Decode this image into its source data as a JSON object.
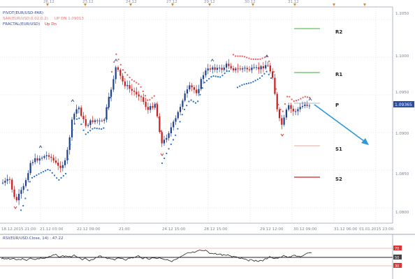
{
  "chart": {
    "top_dates": [
      "26.12",
      "23.12",
      "24.12",
      "27.12",
      "29.12",
      "30.12",
      "31.12"
    ],
    "legend": {
      "pivot": "PIVOT(EUR/USD-PAR)",
      "sar": "SAR(EUR/USD,0.02,0.2)",
      "sar_flags": "UP DN 1.09013",
      "fractal": "FRACTAL(EUR/USD)",
      "fractal_flags": "Up Dn"
    },
    "price_axis": [
      "1.1050",
      "1.1000",
      "1.0950",
      "1.0900",
      "1.0850",
      "1.0800"
    ],
    "price_tag": "1.09365",
    "pivot_labels": {
      "r2": "R2",
      "r1": "R1",
      "p": "P",
      "s1": "S1",
      "s2": "S2"
    },
    "time_axis": [
      "18.12.2015 21:00",
      "21.12 03:00",
      "22.12 09:00",
      "21:00",
      "24.12 15:00",
      "28.12 15:00",
      "29.12 12:00",
      "30.12 09:00",
      "31.12 06:00",
      "01.01.2015 23:00"
    ],
    "rsi": {
      "label": "RSI(EUR/USD.Close, 14) : 47.22",
      "axis": [
        "70",
        "50",
        "30"
      ]
    },
    "colors": {
      "up_candle": "#1f3f8f",
      "down_candle": "#c81e1e",
      "sar_dots_below": "#1e6cc8",
      "sar_dots_above": "#e35b5b",
      "r_lines": "#36b336",
      "s_lines": "#cc2222",
      "arrow": "#2a9ad8",
      "price_tag_bg": "#2c4c9c"
    }
  }
}
